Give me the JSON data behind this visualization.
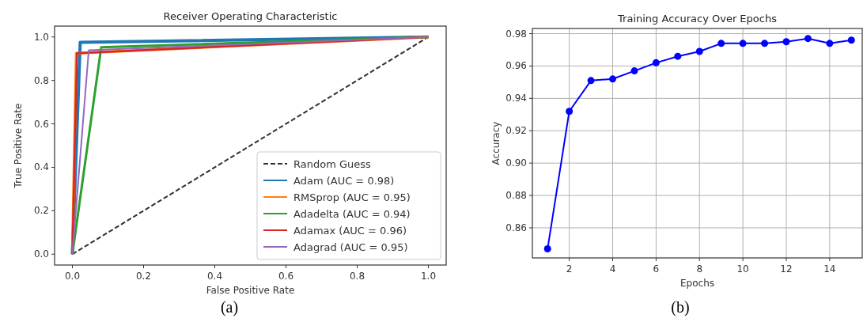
{
  "chart_data": [
    {
      "type": "line",
      "title": "Receiver Operating Characteristic",
      "xlabel": "False Positive Rate",
      "ylabel": "True Positive Rate",
      "xlim": [
        -0.05,
        1.05
      ],
      "ylim": [
        -0.05,
        1.05
      ],
      "xticks": [
        {
          "value": 0,
          "label": "0.0"
        },
        {
          "value": 0.2,
          "label": "0.2"
        },
        {
          "value": 0.4,
          "label": "0.4"
        },
        {
          "value": 0.6,
          "label": "0.6"
        },
        {
          "value": 0.8,
          "label": "0.8"
        },
        {
          "value": 1,
          "label": "1.0"
        }
      ],
      "yticks": [
        {
          "value": 0,
          "label": "0.0"
        },
        {
          "value": 0.2,
          "label": "0.2"
        },
        {
          "value": 0.4,
          "label": "0.4"
        },
        {
          "value": 0.6,
          "label": "0.6"
        },
        {
          "value": 0.8,
          "label": "0.8"
        },
        {
          "value": 1,
          "label": "1.0"
        }
      ],
      "series": [
        {
          "name": "Random Guess",
          "color": "#333333",
          "line_style": "dashed",
          "x": [
            0,
            1
          ],
          "values": [
            0,
            1
          ]
        },
        {
          "name": "Adam (AUC = 0.98)",
          "color": "#1f77b4",
          "x": [
            0,
            0.022,
            1
          ],
          "values": [
            0,
            0.975,
            1
          ]
        },
        {
          "name": "RMSprop (AUC = 0.95)",
          "color": "#ff7f0e",
          "x": [
            0,
            0.011,
            1
          ],
          "values": [
            0,
            0.925,
            1
          ]
        },
        {
          "name": "Adadelta (AUC = 0.94)",
          "color": "#2ca02c",
          "x": [
            0,
            0.081,
            1
          ],
          "values": [
            0,
            0.953,
            1
          ]
        },
        {
          "name": "Adamax (AUC = 0.96)",
          "color": "#d62728",
          "x": [
            0,
            0.013,
            1
          ],
          "values": [
            0,
            0.925,
            1
          ]
        },
        {
          "name": "Adagrad (AUC = 0.95)",
          "color": "#9467bd",
          "x": [
            0,
            0.046,
            1
          ],
          "values": [
            0,
            0.939,
            1
          ]
        }
      ],
      "legend": "bottom right",
      "annotations": [
        "(a)"
      ]
    },
    {
      "type": "line",
      "title": "Training Accuracy Over Epochs",
      "xlabel": "Epochs",
      "ylabel": "Accuracy",
      "xlim": [
        0.3,
        15.5
      ],
      "ylim": [
        0.8414,
        0.9832
      ],
      "xticks": [
        2,
        4,
        6,
        8,
        10,
        12,
        14
      ],
      "yticks": [
        0.86,
        0.88,
        {
          "value": 0.9,
          "label": "0.90"
        },
        0.92,
        0.94,
        0.96,
        0.98
      ],
      "x": [
        1,
        2,
        3,
        4,
        5,
        6,
        7,
        8,
        9,
        10,
        11,
        12,
        13,
        14,
        15
      ],
      "series": [
        {
          "color": "#0000ff",
          "values": [
            0.847,
            0.932,
            0.951,
            0.952,
            0.957,
            0.962,
            0.966,
            0.969,
            0.974,
            0.974,
            0.974,
            0.975,
            0.977,
            0.974,
            0.976
          ]
        }
      ],
      "marker": "circle",
      "grid": true,
      "annotations": [
        "(b)"
      ]
    }
  ]
}
